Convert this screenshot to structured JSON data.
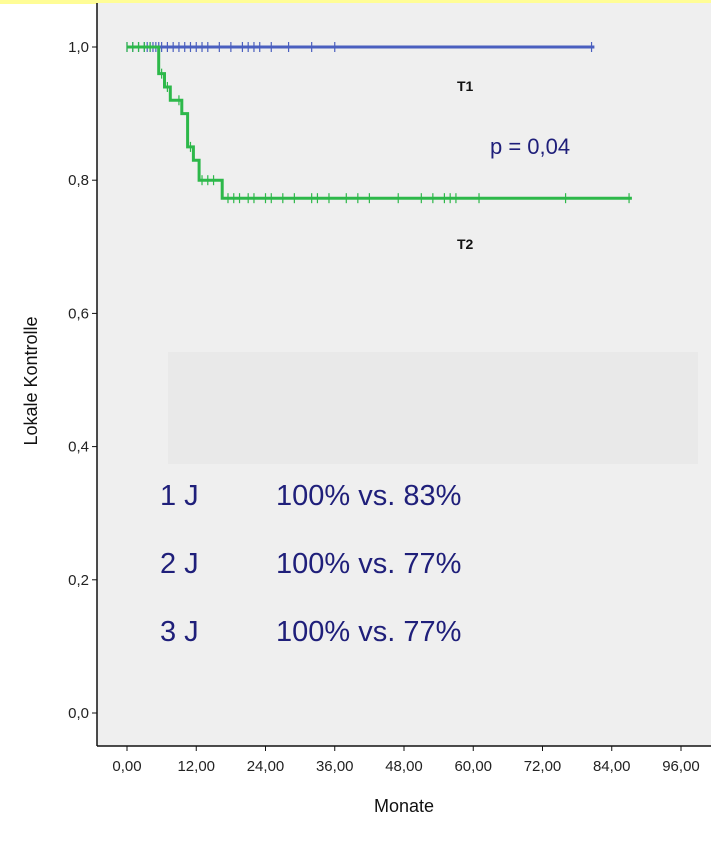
{
  "chart_data": {
    "type": "line",
    "subtype": "kaplan-meier",
    "ylabel": "Lokale Kontrolle",
    "xlabel": "Monate",
    "xlim": [
      0,
      96
    ],
    "ylim": [
      0,
      1
    ],
    "x_ticks": [
      "0,00",
      "12,00",
      "24,00",
      "36,00",
      "48,00",
      "60,00",
      "72,00",
      "84,00",
      "96,00"
    ],
    "y_ticks": [
      "0,0",
      "0,2",
      "0,4",
      "0,6",
      "0,8",
      "1,0"
    ],
    "series": [
      {
        "name": "T1",
        "color": "#4a5fbf",
        "steps": [
          [
            0,
            1.0
          ],
          [
            81,
            1.0
          ]
        ],
        "censored": [
          0,
          1,
          2,
          3,
          3.5,
          4,
          4.5,
          5,
          5.5,
          6,
          7,
          8,
          9,
          10,
          11,
          12,
          13,
          14,
          16,
          18,
          20,
          21,
          22,
          23,
          25,
          28,
          32,
          36,
          80.5
        ]
      },
      {
        "name": "T2",
        "color": "#2db84a",
        "steps": [
          [
            0,
            1.0
          ],
          [
            5.5,
            1.0
          ],
          [
            5.5,
            0.96
          ],
          [
            6.5,
            0.96
          ],
          [
            6.5,
            0.94
          ],
          [
            7.5,
            0.94
          ],
          [
            7.5,
            0.92
          ],
          [
            9.5,
            0.92
          ],
          [
            9.5,
            0.9
          ],
          [
            10.5,
            0.9
          ],
          [
            10.5,
            0.85
          ],
          [
            11.5,
            0.85
          ],
          [
            11.5,
            0.83
          ],
          [
            12.5,
            0.83
          ],
          [
            12.5,
            0.8
          ],
          [
            16.5,
            0.8
          ],
          [
            16.5,
            0.773
          ],
          [
            87.5,
            0.773
          ]
        ],
        "censored": [
          0,
          1,
          2,
          3,
          4,
          6,
          7,
          9,
          11,
          13,
          14,
          15,
          17.5,
          18.5,
          19.5,
          21,
          22,
          24,
          25,
          27,
          29,
          32,
          33,
          35,
          38,
          40,
          42,
          47,
          51,
          53,
          55,
          56,
          57,
          61,
          76,
          87
        ]
      }
    ],
    "annotations": {
      "p_value": "p = 0,04",
      "rates": [
        {
          "label": "1 J",
          "value": "100% vs. 83%"
        },
        {
          "label": "2 J",
          "value": "100% vs. 77%"
        },
        {
          "label": "3 J",
          "value": "100% vs. 77%"
        }
      ]
    },
    "grid": false,
    "colors": {
      "plot_background": "#efefef",
      "axis": "#111111",
      "annotation_text": "#1f1f7a"
    }
  }
}
